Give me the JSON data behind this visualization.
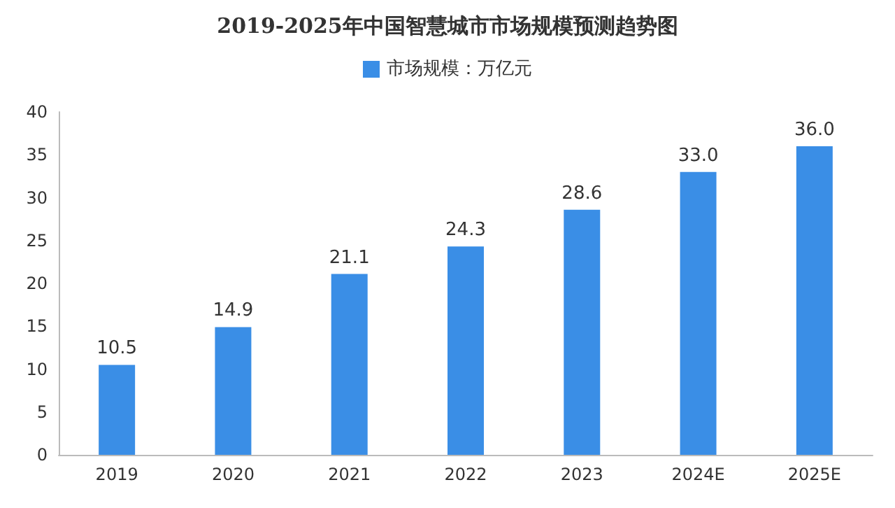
{
  "chart_data": {
    "type": "bar",
    "title": "2019-2025年中国智慧城市市场规模预测趋势图",
    "categories": [
      "2019",
      "2020",
      "2021",
      "2022",
      "2023",
      "2024E",
      "2025E"
    ],
    "series": [
      {
        "name": "市场规模：万亿元",
        "color": "#3a8ee6",
        "values": [
          10.5,
          14.9,
          21.1,
          24.3,
          28.6,
          33.0,
          36.0
        ],
        "value_labels": [
          "10.5",
          "14.9",
          "21.1",
          "24.3",
          "28.6",
          "33.0",
          "36.0"
        ]
      }
    ],
    "ylim": [
      0,
      40
    ],
    "yticks": [
      0,
      5,
      10,
      15,
      20,
      25,
      30,
      35,
      40
    ],
    "grid": false,
    "legend": "top"
  }
}
